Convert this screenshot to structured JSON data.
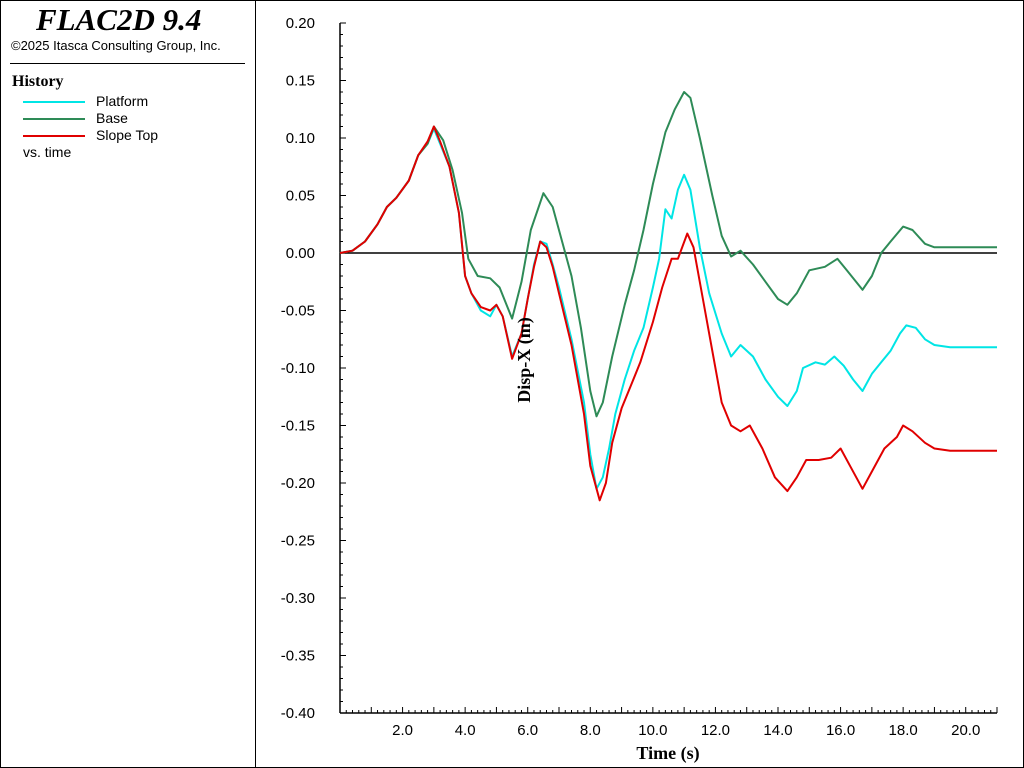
{
  "header": {
    "title": "FLAC2D 9.4",
    "copyright": "©2025 Itasca Consulting Group, Inc."
  },
  "legend": {
    "title": "History",
    "items": [
      {
        "label": "Platform",
        "color": "#00e5e5"
      },
      {
        "label": "Base",
        "color": "#2e8b57"
      },
      {
        "label": "Slope Top",
        "color": "#e00000"
      }
    ],
    "vs_label": "vs. time"
  },
  "chart_data": {
    "type": "line",
    "xlabel": "Time (s)",
    "ylabel": "Disp-X (m)",
    "xlim": [
      0,
      21.0
    ],
    "ylim": [
      -0.4,
      0.2
    ],
    "xticks": [
      "2.0",
      "4.0",
      "6.0",
      "8.0",
      "10.0",
      "12.0",
      "14.0",
      "16.0",
      "18.0",
      "20.0"
    ],
    "xtick_values": [
      2,
      4,
      6,
      8,
      10,
      12,
      14,
      16,
      18,
      20
    ],
    "yticks": [
      "0.20",
      "0.15",
      "0.10",
      "0.05",
      "0.00",
      "-0.05",
      "-0.10",
      "-0.15",
      "-0.20",
      "-0.25",
      "-0.30",
      "-0.35",
      "-0.40"
    ],
    "ytick_values": [
      0.2,
      0.15,
      0.1,
      0.05,
      0.0,
      -0.05,
      -0.1,
      -0.15,
      -0.2,
      -0.25,
      -0.3,
      -0.35,
      -0.4
    ],
    "zero_line": true,
    "series": [
      {
        "name": "Platform",
        "color": "#00e5e5",
        "points": [
          [
            0,
            0
          ],
          [
            0.4,
            0.002
          ],
          [
            0.8,
            0.01
          ],
          [
            1.2,
            0.025
          ],
          [
            1.5,
            0.04
          ],
          [
            1.8,
            0.048
          ],
          [
            2.2,
            0.063
          ],
          [
            2.5,
            0.085
          ],
          [
            2.8,
            0.095
          ],
          [
            3.0,
            0.108
          ],
          [
            3.2,
            0.095
          ],
          [
            3.5,
            0.075
          ],
          [
            3.8,
            0.035
          ],
          [
            4.0,
            -0.02
          ],
          [
            4.2,
            -0.035
          ],
          [
            4.5,
            -0.05
          ],
          [
            4.8,
            -0.055
          ],
          [
            5.0,
            -0.045
          ],
          [
            5.2,
            -0.055
          ],
          [
            5.5,
            -0.09
          ],
          [
            5.8,
            -0.07
          ],
          [
            6.0,
            -0.04
          ],
          [
            6.2,
            -0.01
          ],
          [
            6.4,
            0.01
          ],
          [
            6.6,
            0.008
          ],
          [
            6.8,
            -0.01
          ],
          [
            7.0,
            -0.03
          ],
          [
            7.4,
            -0.075
          ],
          [
            7.8,
            -0.13
          ],
          [
            8.0,
            -0.175
          ],
          [
            8.2,
            -0.205
          ],
          [
            8.4,
            -0.195
          ],
          [
            8.6,
            -0.17
          ],
          [
            8.8,
            -0.14
          ],
          [
            9.1,
            -0.11
          ],
          [
            9.4,
            -0.085
          ],
          [
            9.7,
            -0.065
          ],
          [
            10.0,
            -0.03
          ],
          [
            10.2,
            -0.005
          ],
          [
            10.4,
            0.038
          ],
          [
            10.6,
            0.03
          ],
          [
            10.8,
            0.055
          ],
          [
            11.0,
            0.068
          ],
          [
            11.2,
            0.055
          ],
          [
            11.5,
            0.005
          ],
          [
            11.8,
            -0.035
          ],
          [
            12.2,
            -0.07
          ],
          [
            12.5,
            -0.09
          ],
          [
            12.8,
            -0.08
          ],
          [
            13.2,
            -0.09
          ],
          [
            13.6,
            -0.11
          ],
          [
            14.0,
            -0.125
          ],
          [
            14.3,
            -0.133
          ],
          [
            14.6,
            -0.12
          ],
          [
            14.8,
            -0.1
          ],
          [
            15.2,
            -0.095
          ],
          [
            15.5,
            -0.097
          ],
          [
            15.8,
            -0.09
          ],
          [
            16.1,
            -0.098
          ],
          [
            16.4,
            -0.11
          ],
          [
            16.7,
            -0.12
          ],
          [
            17.0,
            -0.105
          ],
          [
            17.3,
            -0.095
          ],
          [
            17.6,
            -0.085
          ],
          [
            17.9,
            -0.07
          ],
          [
            18.1,
            -0.063
          ],
          [
            18.4,
            -0.065
          ],
          [
            18.7,
            -0.075
          ],
          [
            19.0,
            -0.08
          ],
          [
            19.5,
            -0.082
          ],
          [
            20.0,
            -0.082
          ],
          [
            21.0,
            -0.082
          ]
        ]
      },
      {
        "name": "Base",
        "color": "#2e8b57",
        "points": [
          [
            0,
            0
          ],
          [
            0.4,
            0.002
          ],
          [
            0.8,
            0.01
          ],
          [
            1.2,
            0.025
          ],
          [
            1.5,
            0.04
          ],
          [
            1.8,
            0.048
          ],
          [
            2.2,
            0.063
          ],
          [
            2.5,
            0.085
          ],
          [
            2.8,
            0.095
          ],
          [
            3.0,
            0.11
          ],
          [
            3.3,
            0.098
          ],
          [
            3.6,
            0.072
          ],
          [
            3.9,
            0.035
          ],
          [
            4.1,
            -0.005
          ],
          [
            4.4,
            -0.02
          ],
          [
            4.8,
            -0.022
          ],
          [
            5.1,
            -0.03
          ],
          [
            5.5,
            -0.057
          ],
          [
            5.8,
            -0.025
          ],
          [
            6.1,
            0.02
          ],
          [
            6.5,
            0.052
          ],
          [
            6.8,
            0.04
          ],
          [
            7.1,
            0.01
          ],
          [
            7.4,
            -0.02
          ],
          [
            7.7,
            -0.065
          ],
          [
            8.0,
            -0.12
          ],
          [
            8.2,
            -0.142
          ],
          [
            8.4,
            -0.13
          ],
          [
            8.7,
            -0.09
          ],
          [
            9.1,
            -0.045
          ],
          [
            9.4,
            -0.015
          ],
          [
            9.7,
            0.02
          ],
          [
            10.0,
            0.06
          ],
          [
            10.4,
            0.105
          ],
          [
            10.7,
            0.125
          ],
          [
            11.0,
            0.14
          ],
          [
            11.2,
            0.135
          ],
          [
            11.5,
            0.1
          ],
          [
            11.9,
            0.05
          ],
          [
            12.2,
            0.015
          ],
          [
            12.5,
            -0.003
          ],
          [
            12.8,
            0.002
          ],
          [
            13.2,
            -0.01
          ],
          [
            13.6,
            -0.025
          ],
          [
            14.0,
            -0.04
          ],
          [
            14.3,
            -0.045
          ],
          [
            14.6,
            -0.035
          ],
          [
            15.0,
            -0.015
          ],
          [
            15.5,
            -0.012
          ],
          [
            15.9,
            -0.005
          ],
          [
            16.2,
            -0.015
          ],
          [
            16.7,
            -0.032
          ],
          [
            17.0,
            -0.02
          ],
          [
            17.3,
            0.0
          ],
          [
            17.6,
            0.01
          ],
          [
            18.0,
            0.023
          ],
          [
            18.3,
            0.02
          ],
          [
            18.7,
            0.008
          ],
          [
            19.0,
            0.005
          ],
          [
            19.5,
            0.005
          ],
          [
            20.0,
            0.005
          ],
          [
            21.0,
            0.005
          ]
        ]
      },
      {
        "name": "Slope Top",
        "color": "#e00000",
        "points": [
          [
            0,
            0
          ],
          [
            0.4,
            0.002
          ],
          [
            0.8,
            0.01
          ],
          [
            1.2,
            0.025
          ],
          [
            1.5,
            0.04
          ],
          [
            1.8,
            0.048
          ],
          [
            2.2,
            0.063
          ],
          [
            2.5,
            0.085
          ],
          [
            2.8,
            0.097
          ],
          [
            3.0,
            0.11
          ],
          [
            3.2,
            0.097
          ],
          [
            3.5,
            0.075
          ],
          [
            3.8,
            0.035
          ],
          [
            4.0,
            -0.02
          ],
          [
            4.2,
            -0.035
          ],
          [
            4.5,
            -0.047
          ],
          [
            4.8,
            -0.05
          ],
          [
            5.0,
            -0.045
          ],
          [
            5.2,
            -0.055
          ],
          [
            5.5,
            -0.092
          ],
          [
            5.8,
            -0.07
          ],
          [
            6.0,
            -0.04
          ],
          [
            6.2,
            -0.012
          ],
          [
            6.4,
            0.01
          ],
          [
            6.6,
            0.005
          ],
          [
            6.8,
            -0.012
          ],
          [
            7.0,
            -0.035
          ],
          [
            7.4,
            -0.08
          ],
          [
            7.8,
            -0.14
          ],
          [
            8.0,
            -0.185
          ],
          [
            8.3,
            -0.215
          ],
          [
            8.5,
            -0.2
          ],
          [
            8.7,
            -0.165
          ],
          [
            9.0,
            -0.135
          ],
          [
            9.3,
            -0.115
          ],
          [
            9.6,
            -0.095
          ],
          [
            10.0,
            -0.06
          ],
          [
            10.3,
            -0.03
          ],
          [
            10.6,
            -0.005
          ],
          [
            10.8,
            -0.005
          ],
          [
            11.1,
            0.017
          ],
          [
            11.3,
            0.005
          ],
          [
            11.6,
            -0.04
          ],
          [
            11.9,
            -0.085
          ],
          [
            12.2,
            -0.13
          ],
          [
            12.5,
            -0.15
          ],
          [
            12.8,
            -0.155
          ],
          [
            13.1,
            -0.15
          ],
          [
            13.5,
            -0.17
          ],
          [
            13.9,
            -0.195
          ],
          [
            14.3,
            -0.207
          ],
          [
            14.6,
            -0.195
          ],
          [
            14.9,
            -0.18
          ],
          [
            15.3,
            -0.18
          ],
          [
            15.7,
            -0.178
          ],
          [
            16.0,
            -0.17
          ],
          [
            16.3,
            -0.185
          ],
          [
            16.7,
            -0.205
          ],
          [
            17.0,
            -0.19
          ],
          [
            17.4,
            -0.17
          ],
          [
            17.8,
            -0.16
          ],
          [
            18.0,
            -0.15
          ],
          [
            18.3,
            -0.155
          ],
          [
            18.7,
            -0.165
          ],
          [
            19.0,
            -0.17
          ],
          [
            19.5,
            -0.172
          ],
          [
            20.0,
            -0.172
          ],
          [
            21.0,
            -0.172
          ]
        ]
      }
    ]
  }
}
